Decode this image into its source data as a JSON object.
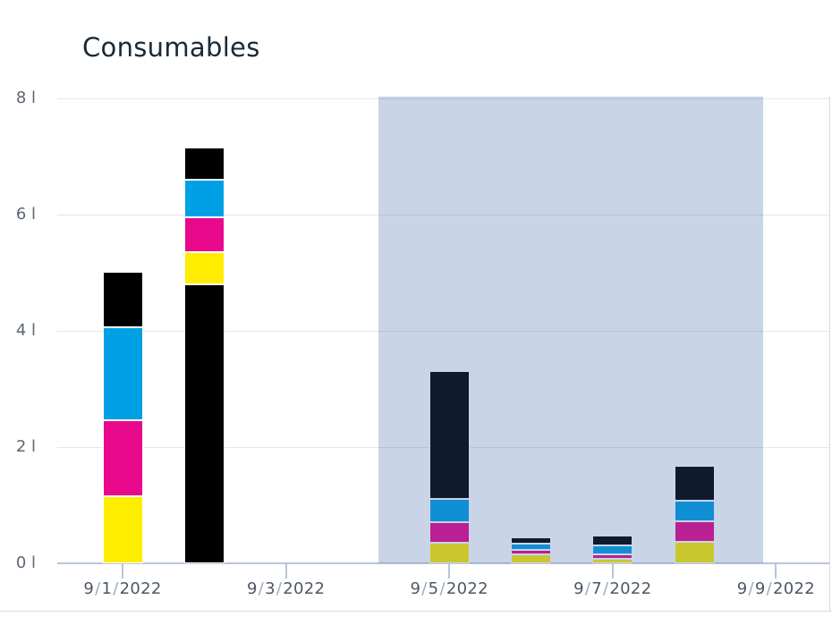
{
  "chart_data": {
    "type": "bar",
    "stacked": true,
    "title": "Consumables",
    "unit": "l",
    "xlabel": "",
    "ylabel": "",
    "ylim": [
      0,
      8
    ],
    "yticks": [
      0,
      2,
      4,
      6,
      8
    ],
    "ytick_labels": [
      "0 l",
      "2 l",
      "4 l",
      "6 l",
      "8 l"
    ],
    "xtick_labels": [
      "9/1/2022",
      "9/3/2022",
      "9/5/2022",
      "9/7/2022",
      "9/9/2022"
    ],
    "grid": "horizontal",
    "legend": "none",
    "palette": {
      "cyan": "#00a1e4",
      "magenta": "#e8098c",
      "yellow": "#ffed00",
      "black": "#000000"
    },
    "highlight_region": {
      "from": "9/4/2022",
      "to": "9/9/2022",
      "color": "rgba(60, 95, 170, 0.27)"
    },
    "bars": [
      {
        "date": "9/1/2022",
        "total": 5.0,
        "segments": [
          {
            "series": "yellow",
            "value": 1.15
          },
          {
            "series": "magenta",
            "value": 1.3
          },
          {
            "series": "cyan",
            "value": 1.6
          },
          {
            "series": "black",
            "value": 0.95
          }
        ]
      },
      {
        "date": "9/2/2022",
        "total": 7.15,
        "segments": [
          {
            "series": "black",
            "value": 4.8
          },
          {
            "series": "yellow",
            "value": 0.55
          },
          {
            "series": "magenta",
            "value": 0.6
          },
          {
            "series": "cyan",
            "value": 0.65
          },
          {
            "series": "black",
            "value": 0.55
          }
        ]
      },
      {
        "date": "9/5/2022",
        "total": 3.3,
        "segments": [
          {
            "series": "yellow",
            "value": 0.35
          },
          {
            "series": "magenta",
            "value": 0.35
          },
          {
            "series": "cyan",
            "value": 0.4
          },
          {
            "series": "black",
            "value": 2.2
          }
        ]
      },
      {
        "date": "9/6/2022",
        "total": 0.43,
        "segments": [
          {
            "series": "yellow",
            "value": 0.15
          },
          {
            "series": "magenta",
            "value": 0.08
          },
          {
            "series": "cyan",
            "value": 0.1
          },
          {
            "series": "black",
            "value": 0.1
          }
        ]
      },
      {
        "date": "9/7/2022",
        "total": 0.48,
        "segments": [
          {
            "series": "yellow",
            "value": 0.07
          },
          {
            "series": "magenta",
            "value": 0.08
          },
          {
            "series": "cyan",
            "value": 0.16
          },
          {
            "series": "black",
            "value": 0.17
          }
        ]
      },
      {
        "date": "9/8/2022",
        "total": 1.67,
        "segments": [
          {
            "series": "yellow",
            "value": 0.37
          },
          {
            "series": "magenta",
            "value": 0.35
          },
          {
            "series": "cyan",
            "value": 0.35
          },
          {
            "series": "black",
            "value": 0.6
          }
        ]
      }
    ]
  }
}
